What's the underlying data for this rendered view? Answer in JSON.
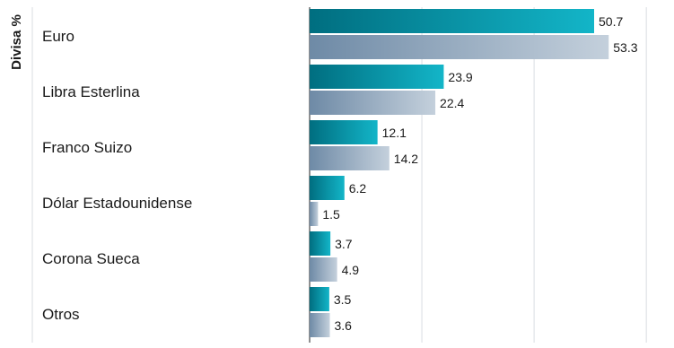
{
  "chart_data": {
    "type": "bar",
    "orientation": "horizontal",
    "ylabel": "Divisa %",
    "xlim": [
      0,
      60
    ],
    "grid": true,
    "categories": [
      "Euro",
      "Libra Esterlina",
      "Franco Suizo",
      "Dólar Estadounidense",
      "Corona Sueca",
      "Otros"
    ],
    "series": [
      {
        "values": [
          50.7,
          23.9,
          12.1,
          6.2,
          3.7,
          3.5
        ],
        "color": "#0aa6b8"
      },
      {
        "values": [
          53.3,
          22.4,
          14.2,
          1.5,
          4.9,
          3.6
        ],
        "color": "#9fb2c6"
      }
    ]
  },
  "colors": {
    "teal_dark": "#006e80",
    "teal_light": "#13b5c8",
    "slate_dark": "#6e8aa6",
    "slate_light": "#c4d0dc",
    "gridline": "#d9dde2",
    "axis": "#222222",
    "text": "#1a1a1a"
  }
}
